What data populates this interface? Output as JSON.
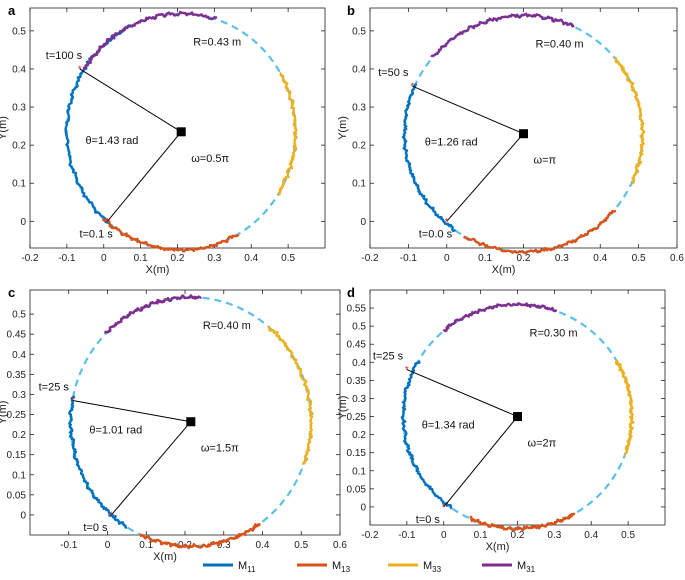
{
  "colors": {
    "circle": "#5BC0E8",
    "M11": "#0072BD",
    "M13": "#D95319",
    "M33": "#EDB120",
    "M31": "#7E2F8E",
    "radius": "#000000",
    "center": "#000000",
    "marker": "#D62728"
  },
  "legend": [
    {
      "key": "M11",
      "base": "M",
      "sub": "11"
    },
    {
      "key": "M13",
      "base": "M",
      "sub": "13"
    },
    {
      "key": "M33",
      "base": "M",
      "sub": "33"
    },
    {
      "key": "M31",
      "base": "M",
      "sub": "31"
    }
  ],
  "chart_data": [
    {
      "type": "line",
      "panel": "a",
      "xlabel": "X(m)",
      "ylabel": "Y(m)",
      "xlim": [
        -0.2,
        0.6
      ],
      "ylim": [
        -0.07,
        0.56
      ],
      "xticks": [
        -0.2,
        -0.1,
        0,
        0.1,
        0.2,
        0.3,
        0.4,
        0.5
      ],
      "yticks": [
        0,
        0.1,
        0.2,
        0.3,
        0.4,
        0.5
      ],
      "center": [
        0.21,
        0.235
      ],
      "radius": 0.31,
      "start_point": [
        0.01,
        0.0
      ],
      "end_point": [
        -0.065,
        0.4
      ],
      "annotations": {
        "R": "R=0.43 m",
        "theta": "θ=1.43 rad",
        "omega": "ω=0.5π",
        "t_start": "t=0.1 s",
        "t_end": "t=100 s"
      },
      "arcs": [
        {
          "series": "M11",
          "from": 233,
          "to": 116
        },
        {
          "series": "M13",
          "from": 300,
          "to": 227
        },
        {
          "series": "M33",
          "from": 30,
          "to": -32
        },
        {
          "series": "M31",
          "from": 148,
          "to": 72
        }
      ]
    },
    {
      "type": "line",
      "panel": "b",
      "xlabel": "X(m)",
      "ylabel": "Y(m)",
      "xlim": [
        -0.2,
        0.6
      ],
      "ylim": [
        -0.07,
        0.56
      ],
      "xticks": [
        -0.2,
        -0.1,
        0,
        0.1,
        0.2,
        0.3,
        0.4,
        0.5,
        0.6
      ],
      "yticks": [
        0,
        0.1,
        0.2,
        0.3,
        0.4,
        0.5
      ],
      "center": [
        0.2,
        0.23
      ],
      "radius": 0.31,
      "start_point": [
        0.0,
        0.0
      ],
      "end_point": [
        -0.09,
        0.355
      ],
      "annotations": {
        "R": "R=0.40 m",
        "theta": "θ=1.26 rad",
        "omega": "ω=π",
        "t_start": "t=0.0 s",
        "t_end": "t=50 s"
      },
      "arcs": [
        {
          "series": "M11",
          "from": 235,
          "to": 155
        },
        {
          "series": "M13",
          "from": 320,
          "to": 240
        },
        {
          "series": "M33",
          "from": 40,
          "to": -25
        },
        {
          "series": "M31",
          "from": 140,
          "to": 65
        }
      ]
    },
    {
      "type": "line",
      "panel": "c",
      "xlabel": "X(m)",
      "ylabel": "Y(m)",
      "xlim": [
        -0.2,
        0.6
      ],
      "ylim": [
        -0.05,
        0.56
      ],
      "xticks": [
        -0.1,
        0,
        0.1,
        0.2,
        0.3,
        0.4,
        0.5,
        0.6
      ],
      "yticks": [
        0,
        0.05,
        0.1,
        0.15,
        0.2,
        0.25,
        0.3,
        0.35,
        0.4,
        0.45,
        0.5
      ],
      "center": [
        0.215,
        0.232
      ],
      "radius": 0.31,
      "start_point": [
        0.01,
        0.0
      ],
      "end_point": [
        -0.09,
        0.285
      ],
      "annotations": {
        "R": "R=0.40 m",
        "theta": "θ=1.01 rad",
        "omega": "ω=1.5π",
        "t_start": "t=0 s",
        "t_end": "t=25 s"
      },
      "arcs": [
        {
          "series": "M11",
          "from": 238,
          "to": 168
        },
        {
          "series": "M13",
          "from": 305,
          "to": 245
        },
        {
          "series": "M33",
          "from": 50,
          "to": -20
        },
        {
          "series": "M31",
          "from": 135,
          "to": 85
        }
      ]
    },
    {
      "type": "line",
      "panel": "d",
      "xlabel": "X(m)",
      "ylabel": "Y(m)",
      "xlim": [
        -0.2,
        0.6
      ],
      "ylim": [
        -0.05,
        0.6
      ],
      "xticks": [
        -0.2,
        -0.1,
        0,
        0.1,
        0.2,
        0.3,
        0.4,
        0.5
      ],
      "yticks": [
        0,
        0.05,
        0.1,
        0.15,
        0.2,
        0.25,
        0.3,
        0.35,
        0.4,
        0.45,
        0.5,
        0.55
      ],
      "center": [
        0.2,
        0.25
      ],
      "radius": 0.31,
      "start_point": [
        0.0,
        0.0
      ],
      "end_point": [
        -0.1,
        0.38
      ],
      "annotations": {
        "R": "R=0.30 m",
        "theta": "θ=1.34 rad",
        "omega": "ω=2π",
        "t_start": "t=0 s",
        "t_end": "t=25 s"
      },
      "arcs": [
        {
          "series": "M11",
          "from": 235,
          "to": 150
        },
        {
          "series": "M13",
          "from": 300,
          "to": 245
        },
        {
          "series": "M33",
          "from": 30,
          "to": -20
        },
        {
          "series": "M31",
          "from": 130,
          "to": 70
        }
      ]
    }
  ]
}
